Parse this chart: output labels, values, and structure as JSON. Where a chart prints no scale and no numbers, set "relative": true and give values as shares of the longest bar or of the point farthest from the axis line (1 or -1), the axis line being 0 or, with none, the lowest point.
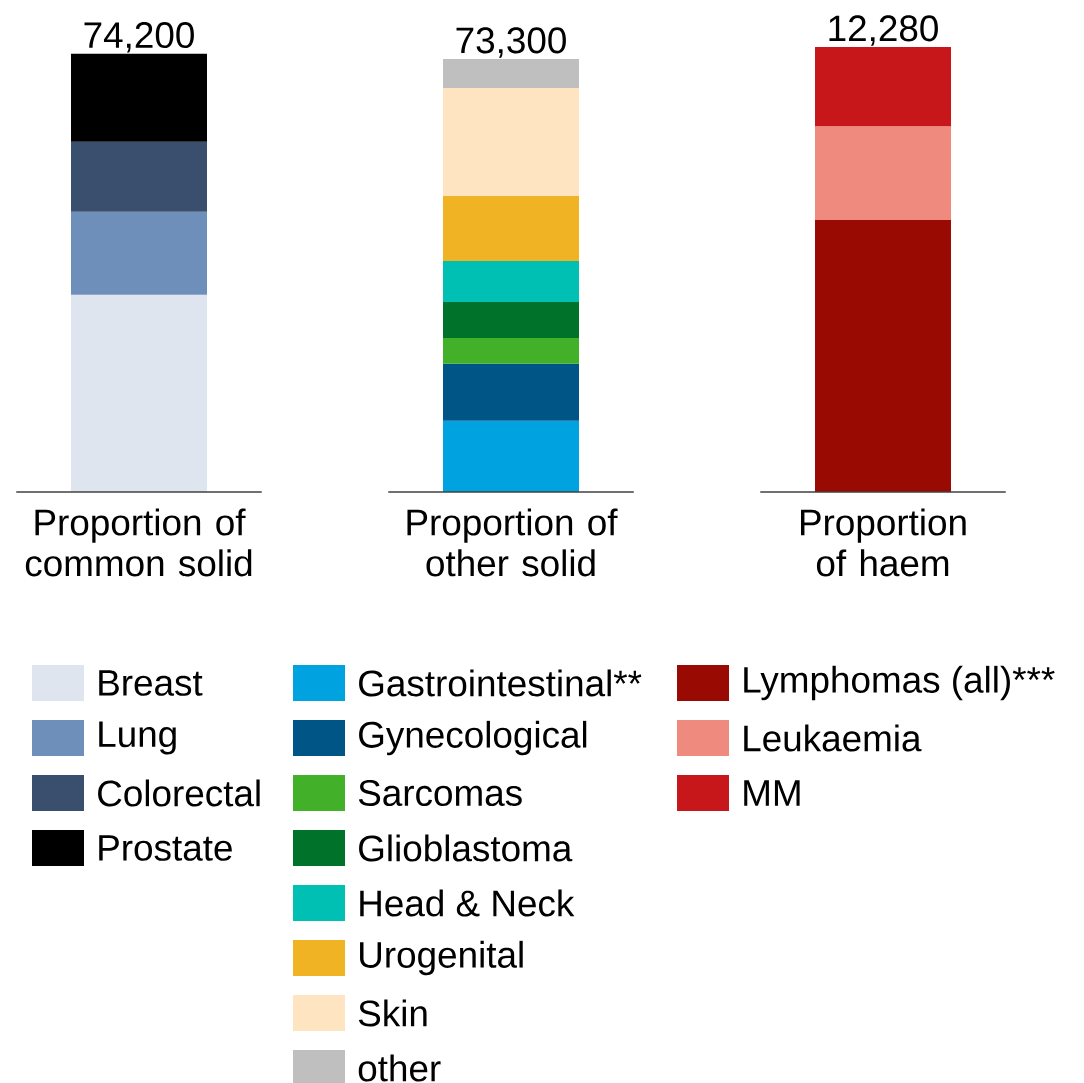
{
  "chart_data": {
    "type": "bar",
    "stacked": true,
    "relative": true,
    "legend": "bottom",
    "categories": [
      "Proportion of common solid",
      "Proportion of other solid",
      "Proportion of haem"
    ],
    "annotations": [
      {
        "text": "74,200",
        "x": "Proportion of common solid",
        "y": 0.985
      },
      {
        "text": "73,300",
        "x": "Proportion of other solid",
        "y": 0.973
      },
      {
        "text": "12,280",
        "x": "Proportion of haem",
        "y": 1.0
      }
    ],
    "series": [
      {
        "name": "Breast",
        "color": "#dfe5ef",
        "values": [
          0.443,
          null,
          null
        ]
      },
      {
        "name": "Lung",
        "color": "#6f8fbb",
        "values": [
          0.187,
          null,
          null
        ]
      },
      {
        "name": "Colorectal",
        "color": "#3a4f6e",
        "values": [
          0.157,
          null,
          null
        ]
      },
      {
        "name": "Prostate",
        "color": "#000000",
        "values": [
          0.198,
          null,
          null
        ]
      },
      {
        "name": "Gastrointestinal**",
        "color": "#00a3e0",
        "values": [
          null,
          0.16,
          null
        ]
      },
      {
        "name": "Gynecological",
        "color": "#005587",
        "values": [
          null,
          0.128,
          null
        ]
      },
      {
        "name": "Sarcomas",
        "color": "#43b02a",
        "values": [
          null,
          0.058,
          null
        ]
      },
      {
        "name": "Glioblastoma",
        "color": "#007229",
        "values": [
          null,
          0.081,
          null
        ]
      },
      {
        "name": "Head & Neck",
        "color": "#00bfb3",
        "values": [
          null,
          0.092,
          null
        ]
      },
      {
        "name": "Urogenital",
        "color": "#f0b323",
        "values": [
          null,
          0.146,
          null
        ]
      },
      {
        "name": "Skin",
        "color": "#ffe4c2",
        "values": [
          null,
          0.243,
          null
        ]
      },
      {
        "name": "other",
        "color": "#bfbfbf",
        "values": [
          null,
          0.065,
          null
        ]
      },
      {
        "name": "Lymphomas (all)***",
        "color": "#990a02",
        "values": [
          null,
          null,
          0.611
        ]
      },
      {
        "name": "Leukaemia",
        "color": "#ee8a7e",
        "values": [
          null,
          null,
          0.211
        ]
      },
      {
        "name": "MM",
        "color": "#c8171a",
        "values": [
          null,
          null,
          0.178
        ]
      }
    ]
  }
}
